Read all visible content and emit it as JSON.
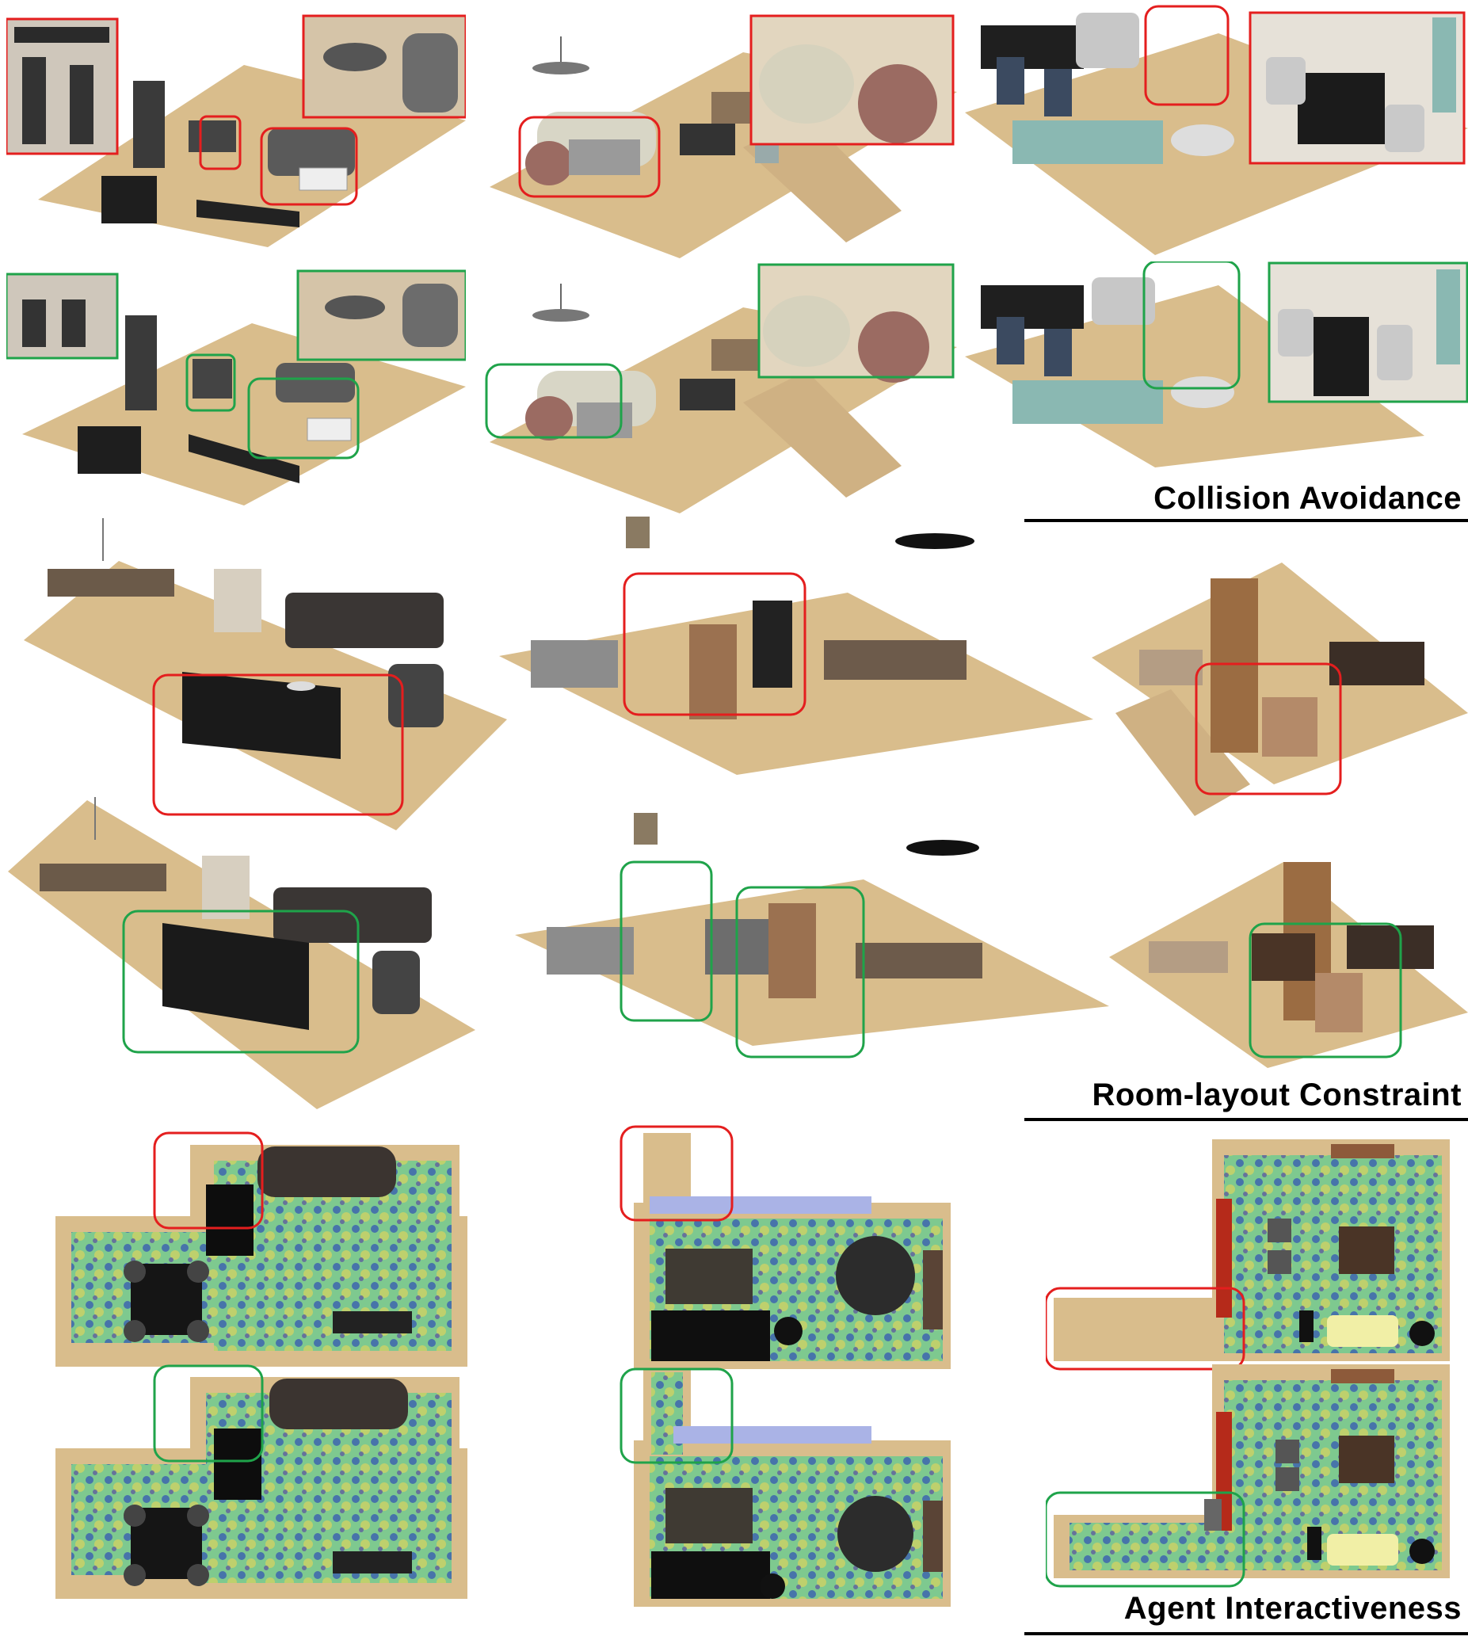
{
  "sections": [
    {
      "title": "Collision Avoidance"
    },
    {
      "title": "Room-layout Constraint"
    },
    {
      "title": "Agent Interactiveness"
    }
  ],
  "colors": {
    "bad_box": "#e41e1e",
    "good_box": "#1fa34a",
    "floor": "#d9bd8c",
    "floor_dark": "#b99a66",
    "furniture_dark": "#2b2b2b",
    "heatmap_blue": "#3a5fb0",
    "heatmap_green": "#7ec98f",
    "heatmap_yellow": "#d9d35e"
  }
}
